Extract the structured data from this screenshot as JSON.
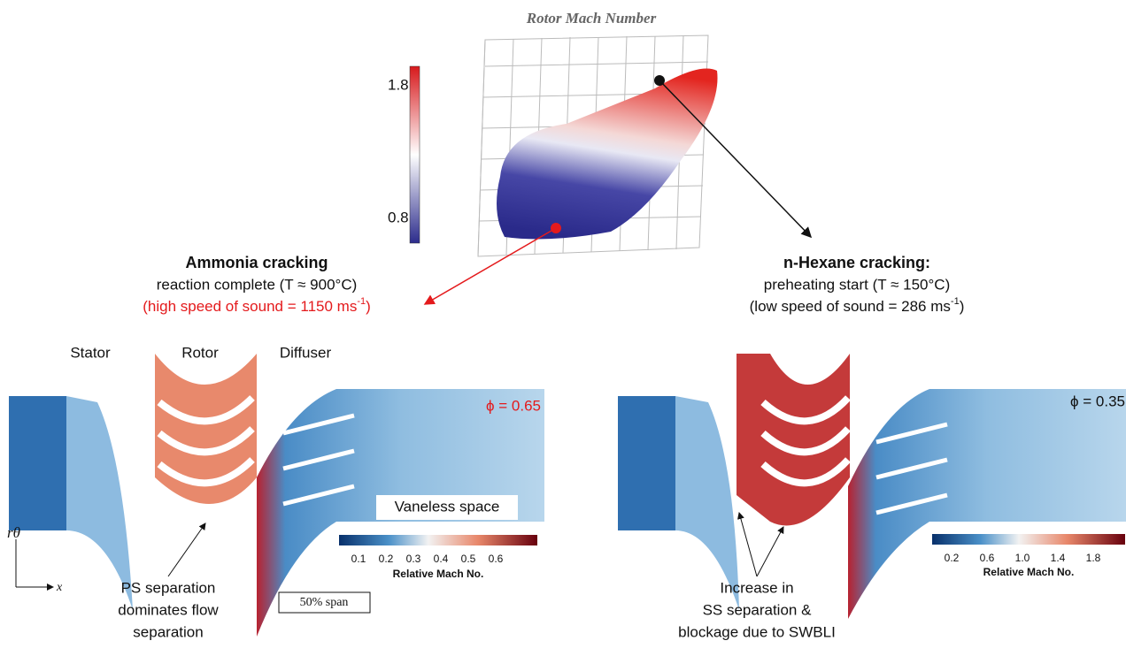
{
  "title": "Rotor Mach Number",
  "scatter_colorbar": {
    "ticks": [
      "1.8",
      "0.8"
    ]
  },
  "left_note": {
    "heading": "Ammonia cracking",
    "line1": "reaction complete (T ≈ 900°C)",
    "line2": "(high speed of sound = 1150 ms",
    "sup": "-1",
    "close": ")"
  },
  "right_note": {
    "heading": "n-Hexane cracking:",
    "line1": "preheating start (T ≈ 150°C)",
    "line2": "(low speed of sound = 286 ms",
    "sup": "-1",
    "close": ")"
  },
  "left_panel": {
    "labels": [
      "Stator",
      "Rotor",
      "Diffuser"
    ],
    "phi": "ϕ = 0.65",
    "vaneless": "Vaneless space",
    "colorbar_ticks": [
      "0.1",
      "0.2",
      "0.3",
      "0.4",
      "0.5",
      "0.6"
    ],
    "colorbar_label": "Relative Mach No.",
    "annotation": [
      "PS separation",
      "dominates flow",
      "separation"
    ],
    "span": "50% span",
    "axis_r": "rθ",
    "axis_x": "x"
  },
  "right_panel": {
    "phi": "ϕ = 0.35",
    "colorbar_ticks": [
      "0.2",
      "0.6",
      "1.0",
      "1.4",
      "1.8"
    ],
    "colorbar_label": "Relative Mach No.",
    "annotation": [
      "Increase in",
      "SS separation &",
      "blockage due to SWBLI"
    ]
  }
}
